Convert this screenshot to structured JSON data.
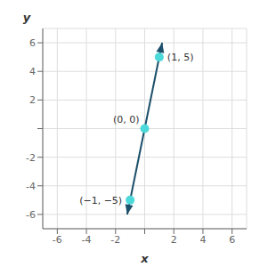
{
  "chart_data": {
    "type": "scatter",
    "xlabel": "x",
    "ylabel": "y",
    "xlim": [
      -7,
      7
    ],
    "ylim": [
      -7,
      7
    ],
    "xticks": [
      -6,
      -4,
      -2,
      {
        "value": 0,
        "label": null
      },
      2,
      4,
      6
    ],
    "yticks": [
      -6,
      -4,
      -2,
      {
        "value": 0,
        "label": null
      },
      2,
      4,
      6
    ],
    "grid": true,
    "data_labels": true,
    "series": [
      {
        "type": "line",
        "x": [
          -1.2,
          1.2
        ],
        "values": [
          -6,
          6
        ],
        "color": "#1B4F6A",
        "marker": "arrow"
      },
      {
        "type": "scatter",
        "x": [
          -1,
          0,
          1
        ],
        "values": [
          -5,
          0,
          5
        ],
        "value_labels": [
          "(−1, −5)",
          "(0, 0)",
          "(1, 5)"
        ],
        "color": "#4DD9D9",
        "marker": "circle"
      }
    ]
  }
}
